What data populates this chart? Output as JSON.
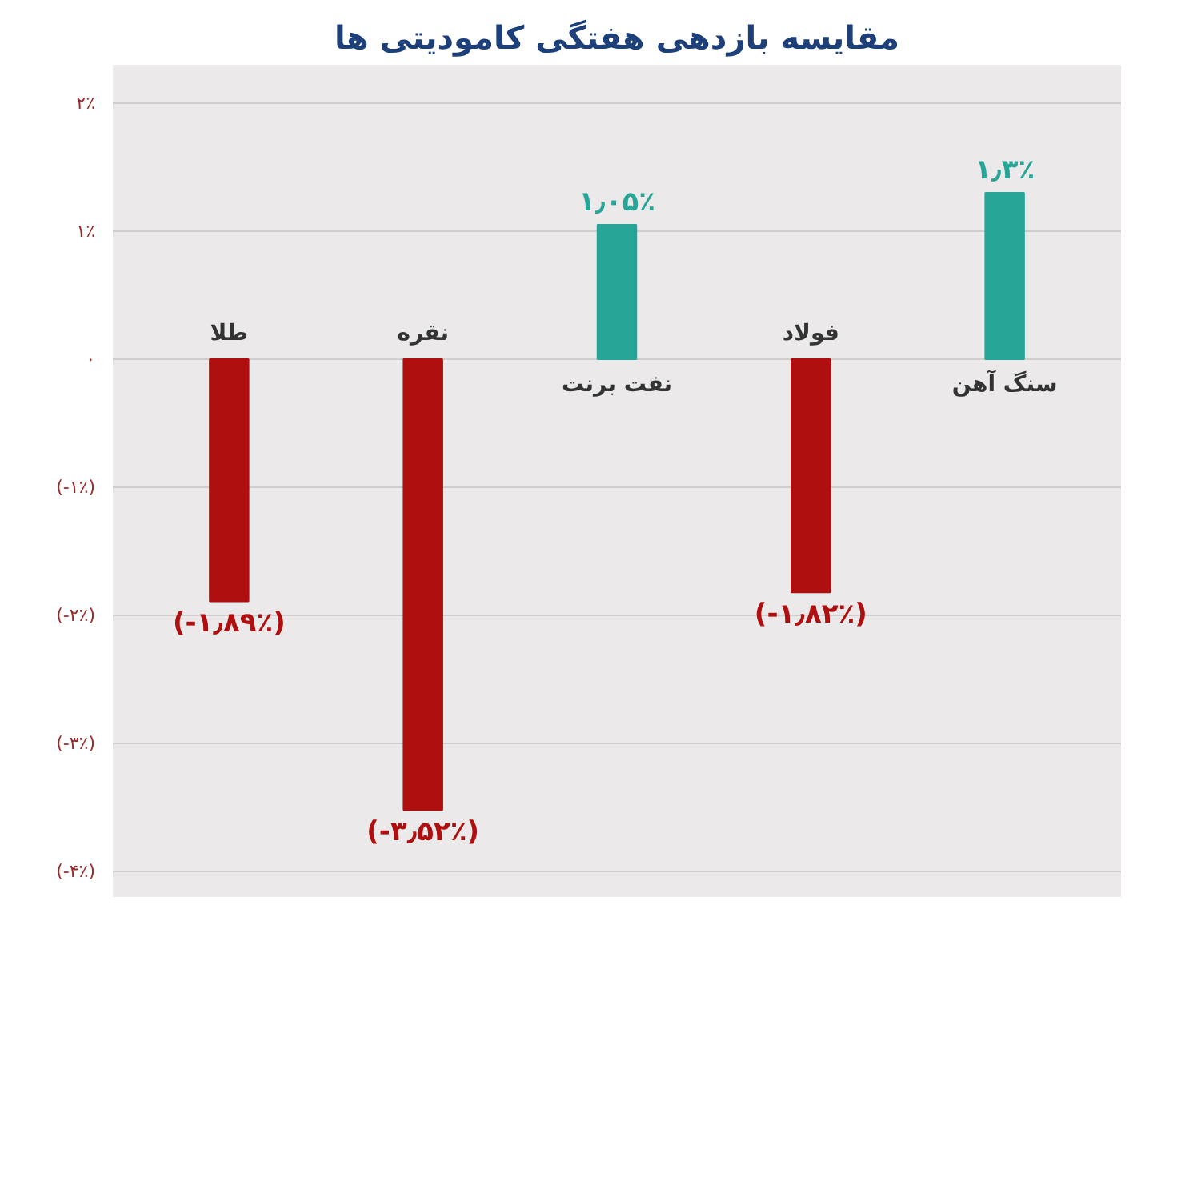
{
  "chart_data": {
    "type": "bar",
    "title": "مقایسه بازدهی هفتگی کامودیتی ها",
    "categories": [
      "طلا",
      "نقره",
      "نفت برنت",
      "فولاد",
      "سنگ آهن"
    ],
    "values": [
      -1.89,
      -3.52,
      1.05,
      -1.82,
      1.3
    ],
    "colors": [
      "#b00f10",
      "#b00f10",
      "#27a596",
      "#b00f10",
      "#27a596"
    ],
    "value_labels": [
      "(-۱٫۸۹٪)",
      "(-۳٫۵۲٪)",
      "۱٫۰۵٪",
      "(-۱٫۸۲٪)",
      "۱٫۳٪"
    ],
    "ylim": [
      -4.2,
      2.3
    ],
    "yticks": [
      {
        "value": 2,
        "label": "۲٪"
      },
      {
        "value": 1,
        "label": "۱٪"
      },
      {
        "value": 0,
        "label": "۰"
      },
      {
        "value": -1,
        "label": "(-۱٪)"
      },
      {
        "value": -2,
        "label": "(-۲٪)"
      },
      {
        "value": -3,
        "label": "(-۳٪)"
      },
      {
        "value": -4,
        "label": "(-۴٪)"
      }
    ],
    "grid": "y"
  }
}
